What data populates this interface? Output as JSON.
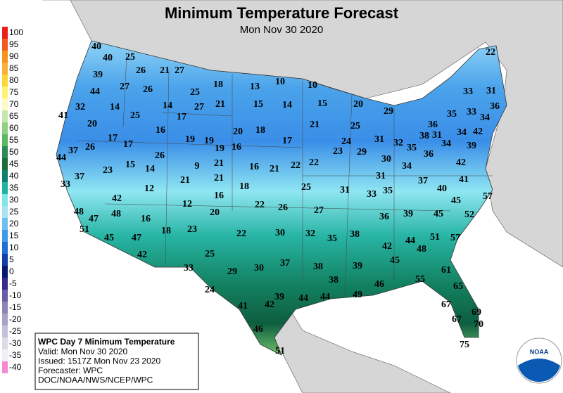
{
  "header": {
    "title": "Minimum Temperature Forecast",
    "subtitle": "Mon Nov 30 2020"
  },
  "legend": {
    "items": [
      {
        "value": 100,
        "color": "#e8201c"
      },
      {
        "value": 95,
        "color": "#f25a22"
      },
      {
        "value": 90,
        "color": "#f7921e"
      },
      {
        "value": 85,
        "color": "#fbb03b"
      },
      {
        "value": 80,
        "color": "#fdd835"
      },
      {
        "value": 75,
        "color": "#fff176"
      },
      {
        "value": 70,
        "color": "#fff9c4"
      },
      {
        "value": 65,
        "color": "#c5e8b0"
      },
      {
        "value": 60,
        "color": "#8fd17f"
      },
      {
        "value": 55,
        "color": "#5cb85c"
      },
      {
        "value": 50,
        "color": "#2e8b57"
      },
      {
        "value": 45,
        "color": "#1e6b3c"
      },
      {
        "value": 40,
        "color": "#0f7f6e"
      },
      {
        "value": 35,
        "color": "#1fb3a3"
      },
      {
        "value": 30,
        "color": "#7fe6ea"
      },
      {
        "value": 25,
        "color": "#a6e3f7"
      },
      {
        "value": 20,
        "color": "#6fc0f2"
      },
      {
        "value": 15,
        "color": "#3e9de8"
      },
      {
        "value": 10,
        "color": "#1f6fd6"
      },
      {
        "value": 5,
        "color": "#1240a8"
      },
      {
        "value": 0,
        "color": "#0a1a6e"
      },
      {
        "value": -5,
        "color": "#3b2a8c"
      },
      {
        "value": -10,
        "color": "#6a5aa8"
      },
      {
        "value": -15,
        "color": "#8a84b8"
      },
      {
        "value": -20,
        "color": "#a7a3c8"
      },
      {
        "value": -25,
        "color": "#c4c2d8"
      },
      {
        "value": -30,
        "color": "#dcdce8"
      },
      {
        "value": -35,
        "color": "#f0f0f4"
      },
      {
        "value": -40,
        "color": "#f58ad0"
      }
    ]
  },
  "info_box": {
    "title": "WPC Day 7 Minimum Temperature",
    "lines": [
      "Valid: Mon Nov 30 2020",
      "Issued: 1517Z Mon Nov 23 2020",
      "Forecaster: WPC",
      "DOC/NOAA/NWS/NCEP/WPC"
    ]
  },
  "logo": {
    "text": "NOAA"
  },
  "stations": {
    "values": [
      40,
      40,
      25,
      26,
      21,
      27,
      39,
      18,
      13,
      10,
      10,
      22,
      44,
      27,
      26,
      25,
      33,
      31,
      32,
      14,
      14,
      27,
      21,
      15,
      14,
      15,
      20,
      29,
      41,
      25,
      17,
      36,
      35,
      33,
      34,
      20,
      16,
      20,
      18,
      21,
      25,
      36,
      31,
      34,
      42,
      17,
      17,
      19,
      19,
      16,
      17,
      24,
      31,
      32,
      38,
      35,
      36,
      34,
      39,
      37,
      44,
      26,
      26,
      23,
      29,
      30,
      34,
      42,
      9,
      21,
      19,
      23,
      15,
      14,
      16,
      21,
      22,
      22,
      31,
      21,
      21,
      41,
      33,
      37,
      12,
      18,
      25,
      31,
      33,
      35,
      37,
      40,
      57,
      42,
      16,
      12,
      22,
      26,
      27,
      45,
      48,
      48,
      47,
      20,
      36,
      39,
      45,
      52,
      16,
      51,
      18,
      23,
      22,
      30,
      32,
      35,
      38,
      51,
      57,
      45,
      47,
      44,
      48,
      42,
      42,
      25,
      45,
      37,
      30,
      38,
      39,
      33,
      29,
      61,
      38,
      55,
      46,
      65,
      24,
      39,
      44,
      44,
      49,
      41,
      42,
      67,
      69,
      67,
      70,
      46,
      75,
      51
    ]
  }
}
